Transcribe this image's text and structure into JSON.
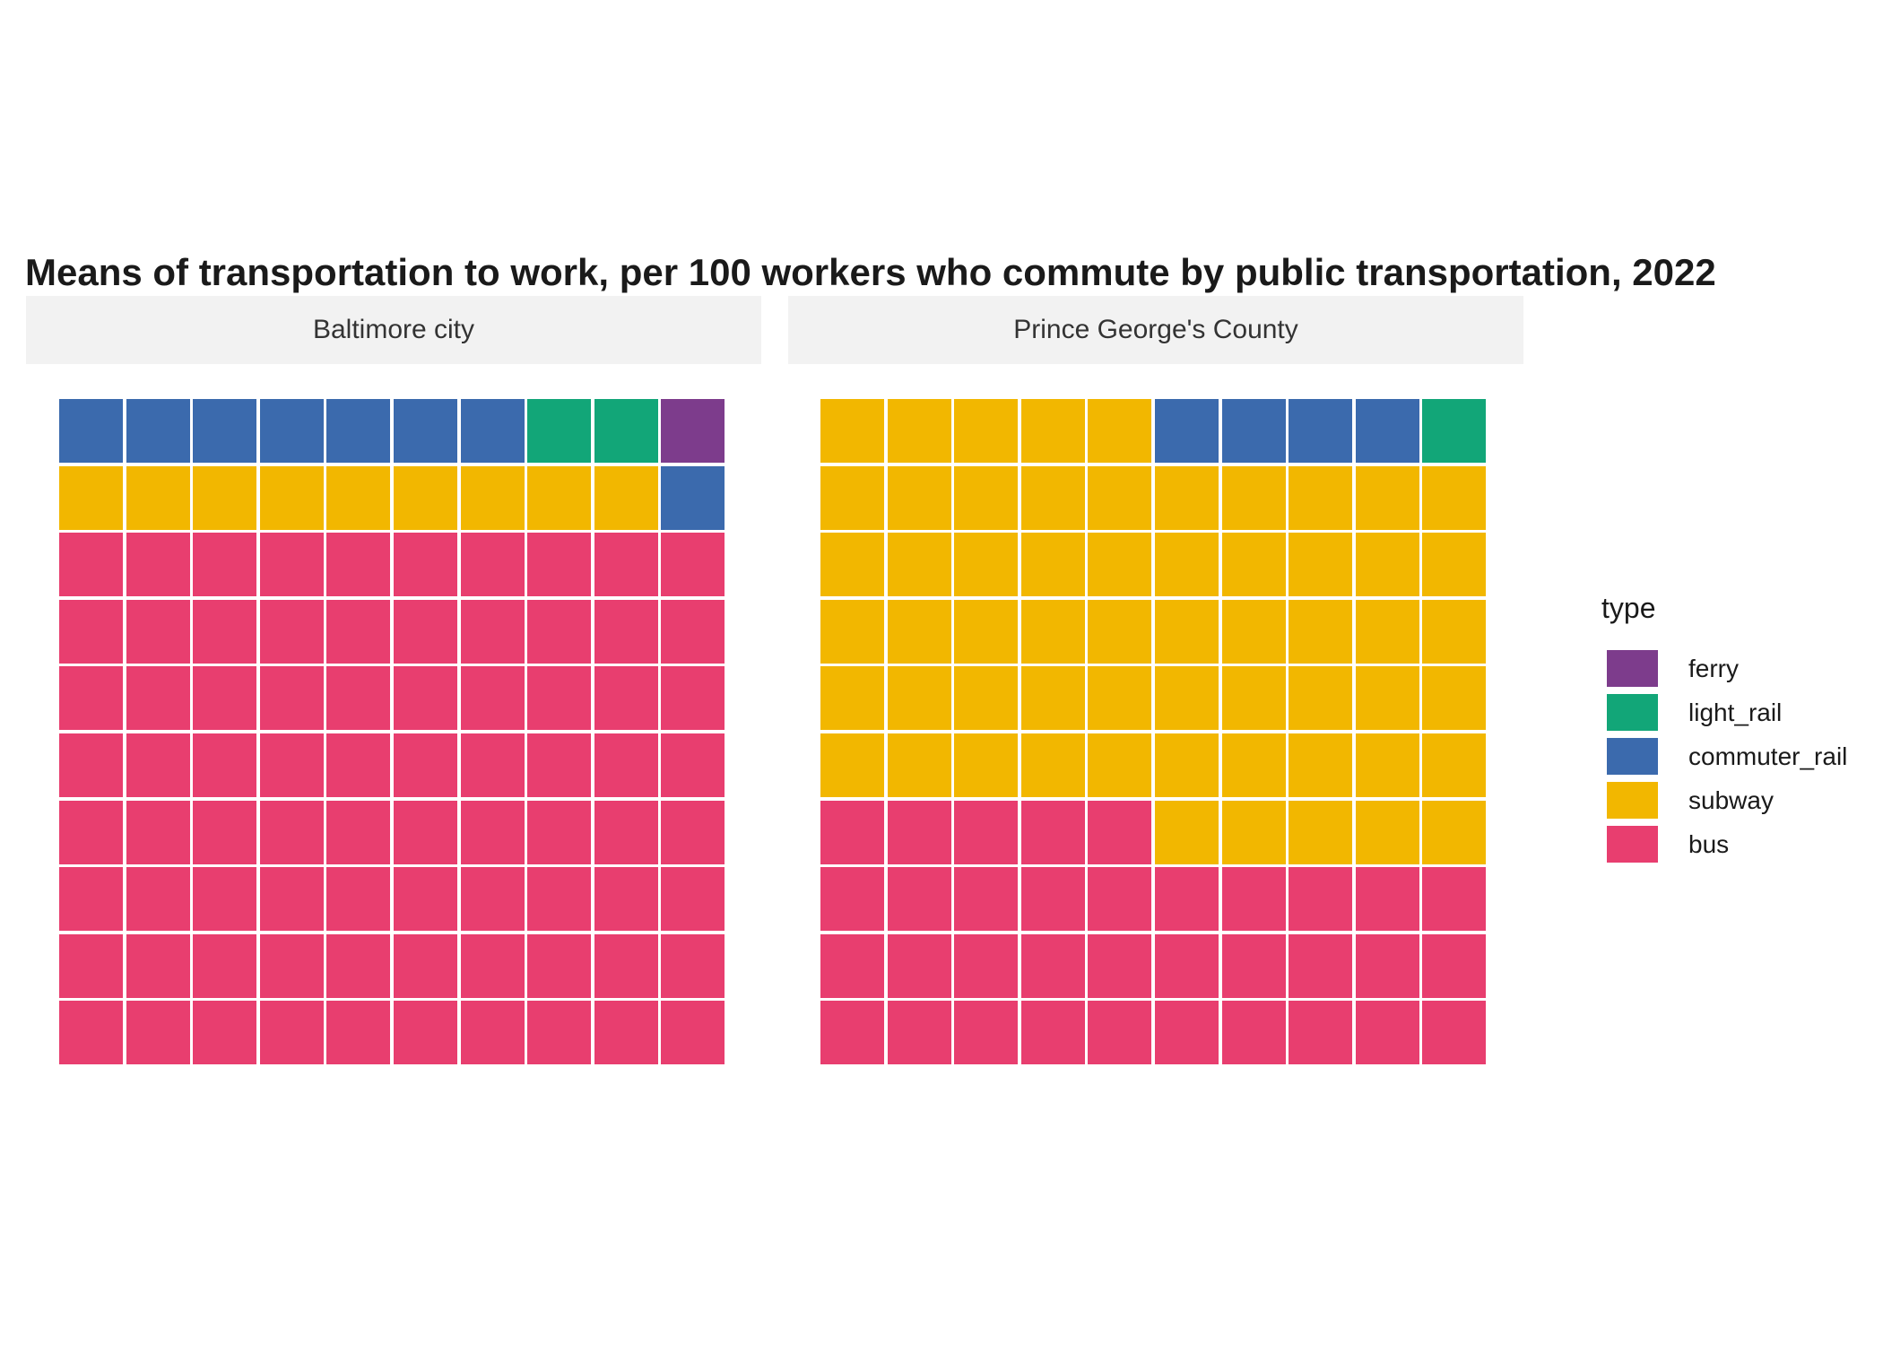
{
  "chart_data": {
    "type": "waffle",
    "title": "Means of transportation to work, per 100 workers who commute by public transportation, 2022",
    "legend_title": "type",
    "legend_position": "right",
    "legend_order": [
      "ferry",
      "light_rail",
      "commuter_rail",
      "subway",
      "bus"
    ],
    "grid": {
      "rows": 10,
      "cols": 10
    },
    "colors": {
      "ferry": "#7d3c8c",
      "light_rail": "#12a678",
      "commuter_rail": "#3b6aad",
      "subway": "#f2b700",
      "bus": "#e83e6f"
    },
    "fill_order": [
      "bus",
      "subway",
      "commuter_rail",
      "light_rail",
      "ferry"
    ],
    "panels": [
      {
        "name": "Baltimore city",
        "values": {
          "bus": 80,
          "subway": 9,
          "commuter_rail": 8,
          "light_rail": 2,
          "ferry": 1
        }
      },
      {
        "name": "Prince George's County",
        "values": {
          "bus": 35,
          "subway": 60,
          "commuter_rail": 4,
          "light_rail": 1,
          "ferry": 0
        }
      }
    ]
  }
}
